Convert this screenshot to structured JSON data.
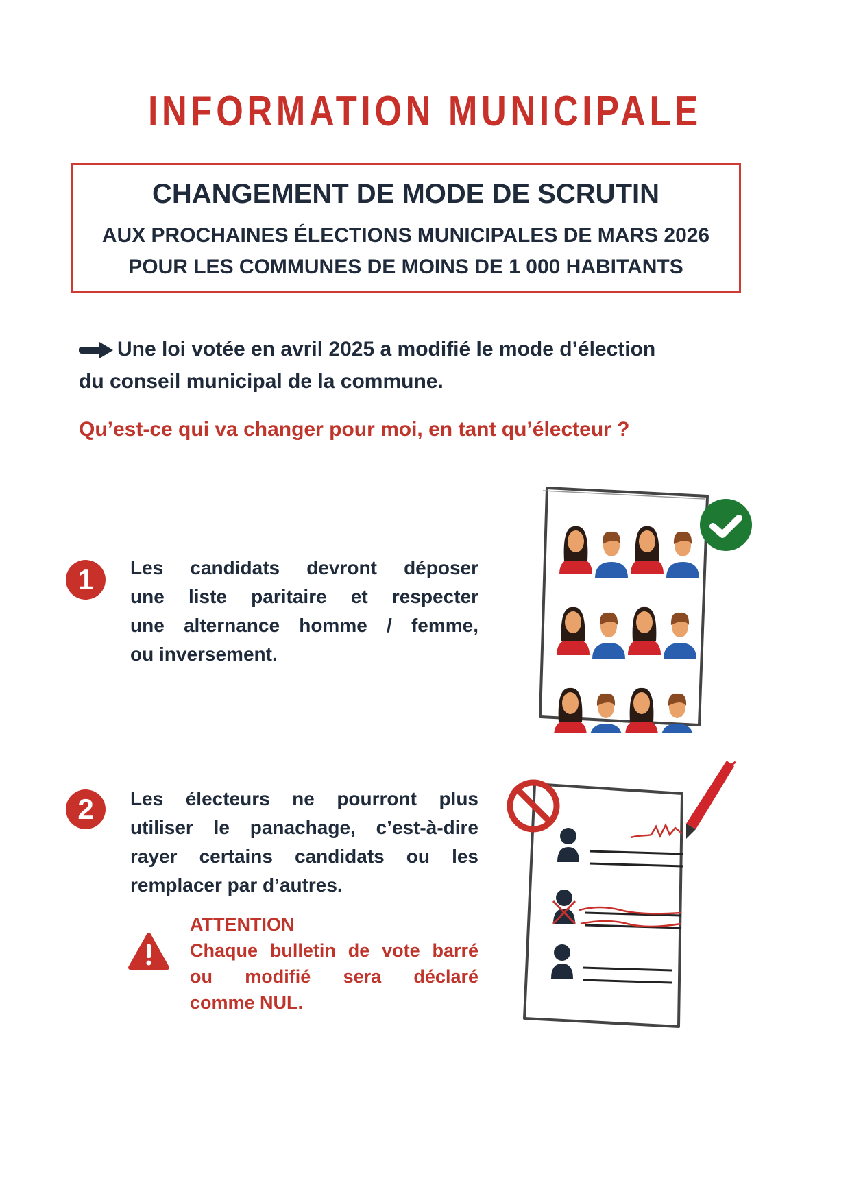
{
  "title": "INFORMATION MUNICIPALE",
  "box": {
    "heading": "CHANGEMENT DE MODE DE SCRUTIN",
    "line1": "AUX PROCHAINES ÉLECTIONS MUNICIPALES DE MARS 2026",
    "line2": "POUR LES COMMUNES DE MOINS DE 1 000 HABITANTS"
  },
  "intro": {
    "icon": "arrow-right-icon",
    "line1": "Une loi votée en avril 2025 a modifié le mode d’élection",
    "line2": "du conseil municipal de la commune."
  },
  "question": "Qu’est-ce qui va changer pour moi, en tant qu’électeur ?",
  "items": [
    {
      "number": "1",
      "lines": [
        "Les candidats devront déposer",
        "une liste paritaire et respecter",
        "une alternance homme / femme,",
        "ou inversement."
      ],
      "illustration": "ballot-with-candidates-checkmark"
    },
    {
      "number": "2",
      "lines": [
        "Les électeurs ne pourront plus",
        "utiliser le panachage, c’est-à-dire",
        "rayer certains candidats ou les",
        "remplacer par d’autres."
      ],
      "illustration": "ballot-crossed-out-prohibited"
    }
  ],
  "warning": {
    "icon": "warning-triangle-icon",
    "title": "ATTENTION",
    "lines": [
      "Chaque bulletin de vote barré",
      "ou modifié sera déclaré",
      "comme NUL."
    ]
  },
  "colors": {
    "red": "#c8302a",
    "navy": "#1f2a3a",
    "green": "#1e7a33",
    "woman_shirt": "#d0262b",
    "man_shirt": "#2a5fb0",
    "skin": "#e8a26a"
  }
}
